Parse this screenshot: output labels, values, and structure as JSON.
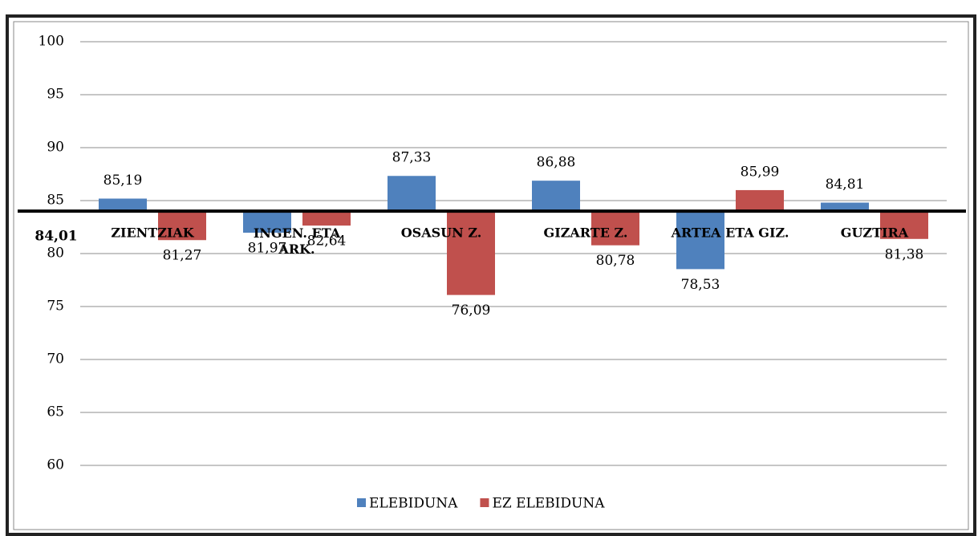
{
  "chart_data": {
    "type": "bar",
    "categories": [
      "ZIENTZIAK",
      "INGEN. ETA ARK.",
      "OSASUN Z.",
      "GIZARTE Z.",
      "ARTEA ETA GIZ.",
      "GUZTIRA"
    ],
    "series": [
      {
        "name": "ELEBIDUNA",
        "color": "#4f81bd",
        "values": [
          85.19,
          81.97,
          87.33,
          86.88,
          78.53,
          84.81
        ],
        "value_labels": [
          "85,19",
          "81,97",
          "87,33",
          "86,88",
          "78,53",
          "84,81"
        ]
      },
      {
        "name": "EZ ELEBIDUNA",
        "color": "#c0504d",
        "values": [
          81.27,
          82.64,
          76.09,
          80.78,
          85.99,
          81.38
        ],
        "value_labels": [
          "81,27",
          "82,64",
          "76,09",
          "80,78",
          "85,99",
          "81,38"
        ]
      }
    ],
    "baseline": 84.01,
    "baseline_label": "84,01",
    "ylim": [
      60,
      100
    ],
    "yticks": [
      60,
      65,
      70,
      75,
      80,
      85,
      90,
      95,
      100
    ],
    "grid": true,
    "legend": "bottom"
  }
}
